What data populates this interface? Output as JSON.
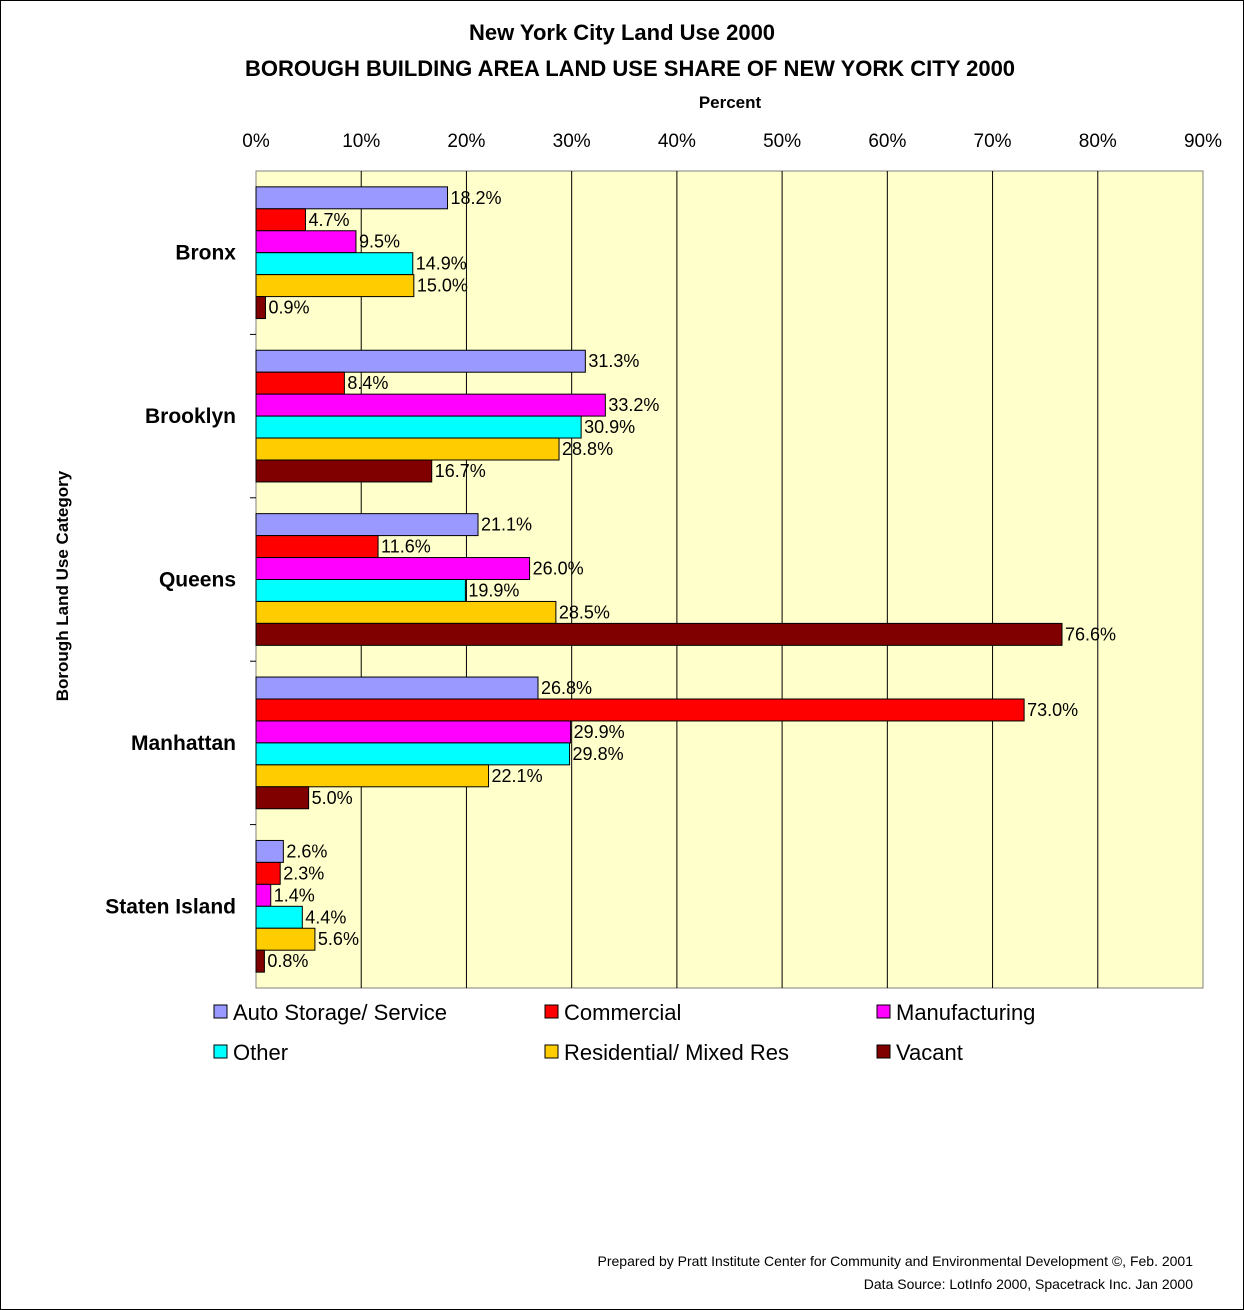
{
  "chart_data": {
    "type": "bar",
    "orientation": "horizontal",
    "title": "New York City Land Use 2000",
    "subtitle": "BOROUGH BUILDING AREA LAND USE SHARE OF NEW YORK CITY 2000",
    "xlabel": "Percent",
    "ylabel": "Borough Land Use Category",
    "xlim": [
      0,
      90
    ],
    "x_ticks": [
      "0%",
      "10%",
      "20%",
      "30%",
      "40%",
      "50%",
      "60%",
      "70%",
      "80%",
      "90%"
    ],
    "x_axis_position": "top",
    "grid": true,
    "legend_position": "bottom",
    "categories": [
      "Bronx",
      "Brooklyn",
      "Queens",
      "Manhattan",
      "Staten Island"
    ],
    "series": [
      {
        "name": "Auto Storage/ Service",
        "color": "#9999FF",
        "values": [
          18.2,
          31.3,
          21.1,
          26.8,
          2.6
        ],
        "labels": [
          "18.2%",
          "31.3%",
          "21.1%",
          "26.8%",
          "2.6%"
        ]
      },
      {
        "name": "Commercial",
        "color": "#FF0000",
        "values": [
          4.7,
          8.4,
          11.6,
          73.0,
          2.3
        ],
        "labels": [
          "4.7%",
          "8.4%",
          "11.6%",
          "73.0%",
          "2.3%"
        ]
      },
      {
        "name": "Manufacturing",
        "color": "#FF00FF",
        "values": [
          9.5,
          33.2,
          26.0,
          29.9,
          1.4
        ],
        "labels": [
          "9.5%",
          "33.2%",
          "26.0%",
          "29.9%",
          "1.4%"
        ]
      },
      {
        "name": "Other",
        "color": "#00FFFF",
        "values": [
          14.9,
          30.9,
          19.9,
          29.8,
          4.4
        ],
        "labels": [
          "14.9%",
          "30.9%",
          "19.9%",
          "29.8%",
          "4.4%"
        ]
      },
      {
        "name": "Residential/ Mixed Res",
        "color": "#FFCC00",
        "values": [
          15.0,
          28.8,
          28.5,
          22.1,
          5.6
        ],
        "labels": [
          "15.0%",
          "28.8%",
          "28.5%",
          "22.1%",
          "5.6%"
        ]
      },
      {
        "name": "Vacant",
        "color": "#800000",
        "values": [
          0.9,
          16.7,
          76.6,
          5.0,
          0.8
        ],
        "labels": [
          "0.9%",
          "16.7%",
          "76.6%",
          "5.0%",
          "0.8%"
        ]
      }
    ],
    "plot_background": "#FFFFCC",
    "footer": [
      "Prepared by Pratt Institute Center for Community and Environmental Development ©, Feb. 2001",
      "Data Source:  LotInfo 2000, Spacetrack Inc. Jan 2000"
    ]
  }
}
